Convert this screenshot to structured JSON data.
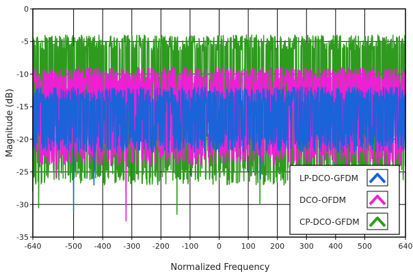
{
  "chart_data": {
    "type": "line",
    "xlabel": "Normalized Frequency",
    "ylabel": "Magnitude (dB)",
    "xlim": [
      -640,
      640
    ],
    "ylim": [
      -35,
      0
    ],
    "x_ticks": [
      -640,
      -500,
      -400,
      -300,
      -200,
      -100,
      0,
      100,
      200,
      300,
      400,
      500,
      640
    ],
    "y_ticks": [
      0,
      -5,
      -10,
      -15,
      -20,
      -25,
      -30,
      -35
    ],
    "grid": true,
    "legend_position": "bottom-right",
    "series": [
      {
        "name": "CP-DCO-GFDM",
        "color": "#2e9a1e",
        "approx_upper_dB": -4,
        "approx_lower_dB": -27,
        "deep_notches": [
          {
            "x": -640,
            "y": -28
          },
          {
            "x": -620,
            "y": -30.5
          },
          {
            "x": -145,
            "y": -31.5
          },
          {
            "x": 140,
            "y": -30
          }
        ]
      },
      {
        "name": "DCO-OFDM",
        "color": "#ee1fd5",
        "approx_upper_dB": -9,
        "approx_lower_dB": -24,
        "deep_notches": [
          {
            "x": -320,
            "y": -32.5
          },
          {
            "x": -560,
            "y": -26
          },
          {
            "x": 270,
            "y": -28
          }
        ]
      },
      {
        "name": "LP-DCO-GFDM",
        "color": "#1a63d9",
        "approx_upper_dB": -12,
        "approx_lower_dB": -22,
        "deep_notches": [
          {
            "x": -500,
            "y": -31
          },
          {
            "x": -430,
            "y": -27
          },
          {
            "x": 140,
            "y": -26
          }
        ]
      }
    ]
  }
}
